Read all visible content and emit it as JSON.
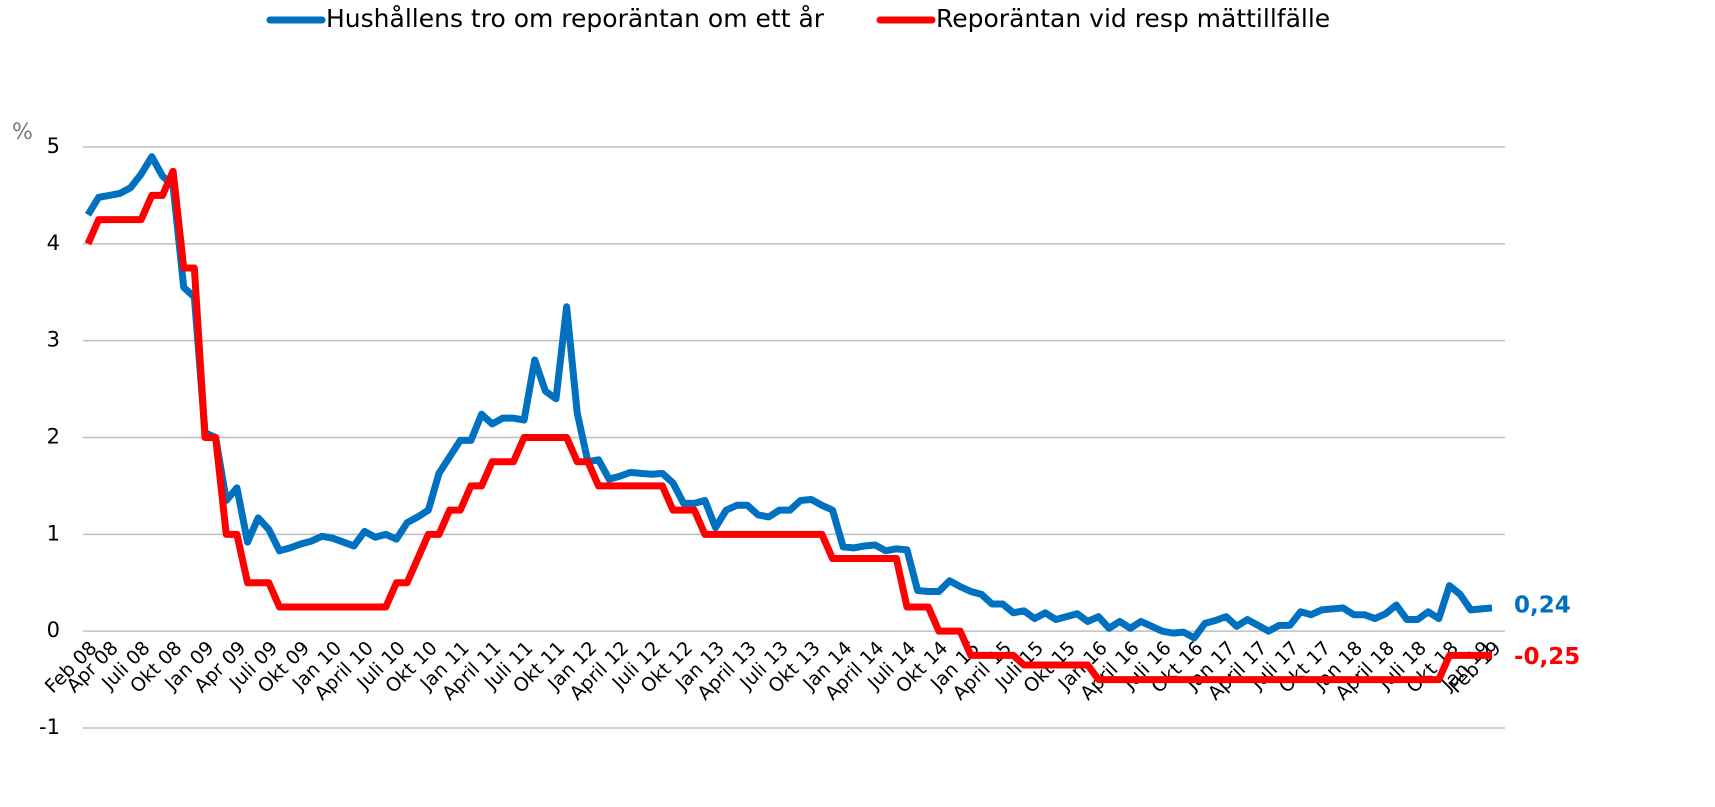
{
  "chart_data": {
    "type": "line",
    "y_unit": "%",
    "categories": [
      "Feb 08",
      null,
      "Apr 08",
      null,
      null,
      "Juli 08",
      null,
      null,
      "Okt 08",
      null,
      null,
      "Jan 09",
      null,
      null,
      "Apr 09",
      null,
      null,
      "Juli 09",
      null,
      null,
      "Okt 09",
      null,
      null,
      "Jan 10",
      null,
      null,
      "April 10",
      null,
      null,
      "Juli 10",
      null,
      null,
      "Okt 10",
      null,
      null,
      "Jan 11",
      null,
      null,
      "April 11",
      null,
      null,
      "Juli 11",
      null,
      null,
      "Okt 11",
      null,
      null,
      "Jan 12",
      null,
      null,
      "April 12",
      null,
      null,
      "Juli 12",
      null,
      null,
      "Okt 12",
      null,
      null,
      "Jan 13",
      null,
      null,
      "April 13",
      null,
      null,
      "Juli 13",
      null,
      null,
      "Okt 13",
      null,
      null,
      "Jan 14",
      null,
      null,
      "April 14",
      null,
      null,
      "Juli 14",
      null,
      null,
      "Okt 14",
      null,
      null,
      "Jan 15",
      null,
      null,
      "April 15",
      null,
      null,
      "Juli 15",
      null,
      null,
      "Okt 15",
      null,
      null,
      "Jan 16",
      null,
      null,
      "April 16",
      null,
      null,
      "Juli 16",
      null,
      null,
      "Okt 16",
      null,
      null,
      "Jan 17",
      null,
      null,
      "April 17",
      null,
      null,
      "Juli 17",
      null,
      null,
      "Okt 17",
      null,
      null,
      "Jan 18",
      null,
      null,
      "April 18",
      null,
      null,
      "Juli 18",
      null,
      null,
      "Okt 18",
      null,
      null,
      "Jan 19",
      "Feb 19"
    ],
    "series": [
      {
        "name": "Hushållens tro om reporäntan om ett år",
        "color": "#0070c0",
        "values": [
          4.3,
          4.48,
          4.5,
          4.52,
          4.58,
          4.72,
          4.9,
          4.7,
          4.6,
          3.55,
          3.45,
          2.05,
          2.0,
          1.35,
          1.48,
          0.92,
          1.17,
          1.05,
          0.83,
          0.86,
          0.9,
          0.93,
          0.98,
          0.96,
          0.92,
          0.88,
          1.03,
          0.97,
          1.0,
          0.95,
          1.12,
          1.18,
          1.25,
          1.63,
          1.8,
          1.97,
          1.97,
          2.24,
          2.14,
          2.2,
          2.2,
          2.18,
          2.8,
          2.48,
          2.4,
          3.35,
          2.25,
          1.75,
          1.77,
          1.57,
          1.6,
          1.64,
          1.63,
          1.62,
          1.63,
          1.53,
          1.32,
          1.32,
          1.35,
          1.07,
          1.25,
          1.3,
          1.3,
          1.2,
          1.18,
          1.25,
          1.25,
          1.35,
          1.36,
          1.3,
          1.25,
          0.87,
          0.86,
          0.88,
          0.89,
          0.83,
          0.85,
          0.84,
          0.42,
          0.41,
          0.41,
          0.52,
          0.46,
          0.41,
          0.38,
          0.28,
          0.28,
          0.19,
          0.21,
          0.13,
          0.19,
          0.12,
          0.15,
          0.18,
          0.1,
          0.15,
          0.03,
          0.1,
          0.03,
          0.1,
          0.05,
          0.0,
          -0.02,
          -0.01,
          -0.07,
          0.08,
          0.11,
          0.15,
          0.05,
          0.12,
          0.06,
          0.0,
          0.06,
          0.06,
          0.2,
          0.17,
          0.22,
          0.23,
          0.24,
          0.17,
          0.17,
          0.13,
          0.18,
          0.27,
          0.12,
          0.12,
          0.2,
          0.13,
          0.47,
          0.38,
          0.22,
          0.23,
          0.24
        ],
        "value_labels": {
          "132": "0,24"
        }
      },
      {
        "name": "Reporäntan vid resp mättillfälle",
        "color": "#ff0000",
        "values": [
          4,
          4.25,
          4.25,
          4.25,
          4.25,
          4.25,
          4.5,
          4.5,
          4.75,
          3.75,
          3.75,
          2,
          2,
          1,
          1,
          0.5,
          0.5,
          0.5,
          0.25,
          0.25,
          0.25,
          0.25,
          0.25,
          0.25,
          0.25,
          0.25,
          0.25,
          0.25,
          0.25,
          0.5,
          0.5,
          0.75,
          1,
          1,
          1.25,
          1.25,
          1.5,
          1.5,
          1.75,
          1.75,
          1.75,
          2,
          2,
          2,
          2,
          2,
          1.75,
          1.75,
          1.5,
          1.5,
          1.5,
          1.5,
          1.5,
          1.5,
          1.5,
          1.25,
          1.25,
          1.25,
          1,
          1,
          1,
          1,
          1,
          1,
          1,
          1,
          1,
          1,
          1,
          1,
          0.75,
          0.75,
          0.75,
          0.75,
          0.75,
          0.75,
          0.75,
          0.25,
          0.25,
          0.25,
          0,
          0,
          0,
          -0.25,
          -0.25,
          -0.25,
          -0.25,
          -0.25,
          -0.35,
          -0.35,
          -0.35,
          -0.35,
          -0.35,
          -0.35,
          -0.35,
          -0.5,
          -0.5,
          -0.5,
          -0.5,
          -0.5,
          -0.5,
          -0.5,
          -0.5,
          -0.5,
          -0.5,
          -0.5,
          -0.5,
          -0.5,
          -0.5,
          -0.5,
          -0.5,
          -0.5,
          -0.5,
          -0.5,
          -0.5,
          -0.5,
          -0.5,
          -0.5,
          -0.5,
          -0.5,
          -0.5,
          -0.5,
          -0.5,
          -0.5,
          -0.5,
          -0.5,
          -0.5,
          -0.5,
          -0.25,
          -0.25,
          -0.25,
          -0.25,
          -0.25
        ],
        "value_labels": {
          "132": "-0,25"
        }
      }
    ],
    "ylim": [
      -1,
      5
    ],
    "yticks": [
      -1,
      0,
      1,
      2,
      3,
      4,
      5
    ],
    "grid": true,
    "legend": "top"
  }
}
